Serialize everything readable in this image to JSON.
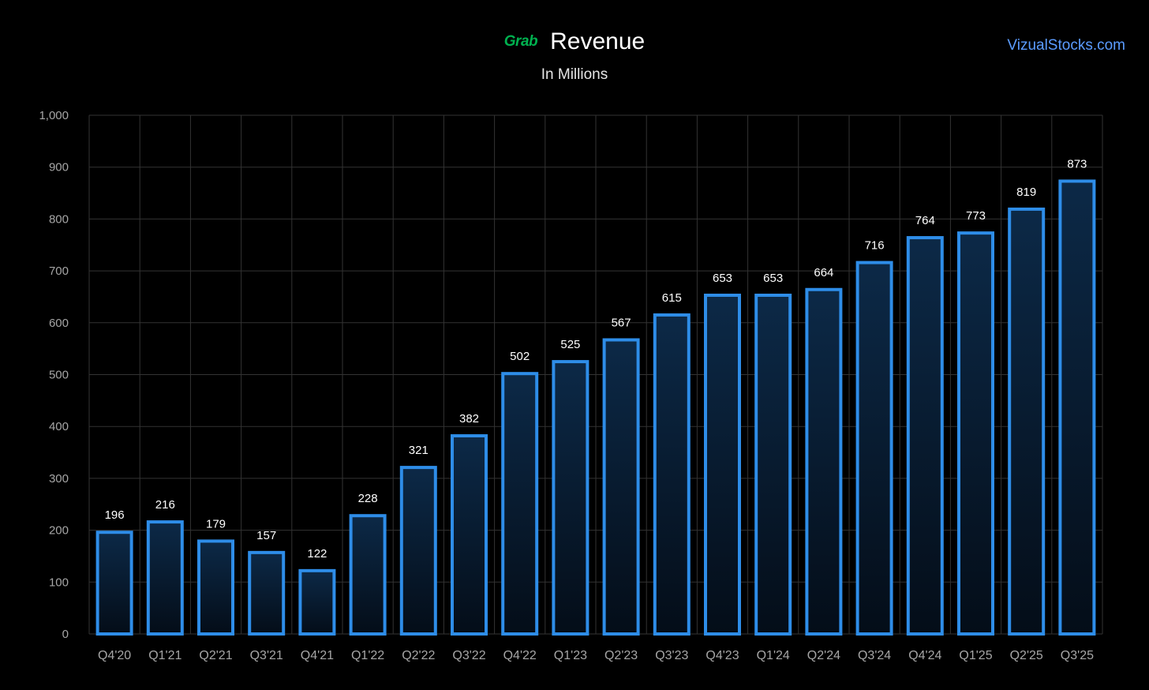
{
  "header": {
    "logo_text": "Grab",
    "title": "Revenue",
    "subtitle": "In Millions",
    "watermark": "VizualStocks.com"
  },
  "colors": {
    "background": "#000000",
    "bar_stroke": "#2e8de8",
    "bar_fill_top": "#0c2947",
    "bar_fill_bottom": "#040d18",
    "grid": "#333333",
    "axis_text": "#a6a6a6",
    "label_text": "#ffffff",
    "logo": "#00b14f",
    "watermark": "#5b9cff"
  },
  "chart_data": {
    "type": "bar",
    "title": "Revenue",
    "subtitle": "In Millions",
    "xlabel": "",
    "ylabel": "",
    "ylim": [
      0,
      1000
    ],
    "yticks": [
      0,
      100,
      200,
      300,
      400,
      500,
      600,
      700,
      800,
      900,
      1000
    ],
    "ytick_labels": [
      "0",
      "100",
      "200",
      "300",
      "400",
      "500",
      "600",
      "700",
      "800",
      "900",
      "1,000"
    ],
    "grid": true,
    "categories": [
      "Q4'20",
      "Q1'21",
      "Q2'21",
      "Q3'21",
      "Q4'21",
      "Q1'22",
      "Q2'22",
      "Q3'22",
      "Q4'22",
      "Q1'23",
      "Q2'23",
      "Q3'23",
      "Q4'23",
      "Q1'24",
      "Q2'24",
      "Q3'24",
      "Q4'24",
      "Q1'25",
      "Q2'25",
      "Q3'25"
    ],
    "values": [
      196,
      216,
      179,
      157,
      122,
      228,
      321,
      382,
      502,
      525,
      567,
      615,
      653,
      653,
      664,
      716,
      764,
      773,
      819,
      873
    ]
  }
}
